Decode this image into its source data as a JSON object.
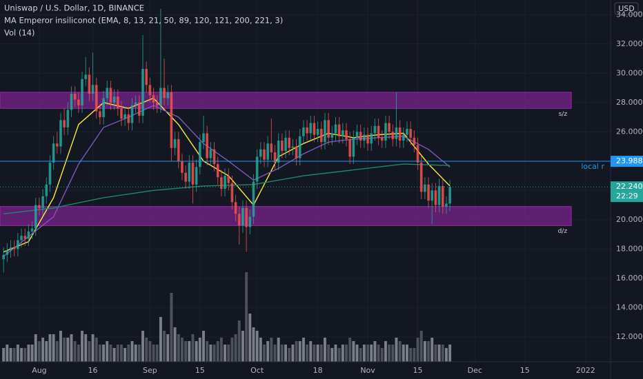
{
  "chart_data": {
    "type": "candlestick",
    "title": "Uniswap / U.S. Dollar, 1D, BINANCE",
    "indicator_label": "MA Emperor insiliconot (EMA, 8, 13, 21, 50, 89, 120, 121, 200, 221, 3)",
    "volume_label": "Vol (14)",
    "currency": "USD",
    "up_color": "#26a69a",
    "down_color": "#ef5350",
    "x": [
      "Jul 22",
      "Jul 23",
      "Jul 24",
      "Jul 25",
      "Jul 26",
      "Jul 27",
      "Jul 28",
      "Jul 29",
      "Jul 30",
      "Jul 31",
      "Aug 1",
      "Aug 2",
      "Aug 3",
      "Aug 4",
      "Aug 5",
      "Aug 6",
      "Aug 7",
      "Aug 8",
      "Aug 9",
      "Aug 10",
      "Aug 11",
      "Aug 12",
      "Aug 13",
      "Aug 14",
      "Aug 15",
      "Aug 16",
      "Aug 17",
      "Aug 18",
      "Aug 19",
      "Aug 20",
      "Aug 21",
      "Aug 22",
      "Aug 23",
      "Aug 24",
      "Aug 25",
      "Aug 26",
      "Aug 27",
      "Aug 28",
      "Aug 29",
      "Aug 30",
      "Aug 31",
      "Sep 1",
      "Sep 2",
      "Sep 3",
      "Sep 4",
      "Sep 5",
      "Sep 6",
      "Sep 7",
      "Sep 8",
      "Sep 9",
      "Sep 10",
      "Sep 11",
      "Sep 12",
      "Sep 13",
      "Sep 14",
      "Sep 15",
      "Sep 16",
      "Sep 17",
      "Sep 18",
      "Sep 19",
      "Sep 20",
      "Sep 21",
      "Sep 22",
      "Sep 23",
      "Sep 24",
      "Sep 25",
      "Sep 26",
      "Sep 27",
      "Sep 28",
      "Sep 29",
      "Sep 30",
      "Oct 1",
      "Oct 2",
      "Oct 3",
      "Oct 4",
      "Oct 5",
      "Oct 6",
      "Oct 7",
      "Oct 8",
      "Oct 9",
      "Oct 10",
      "Oct 11",
      "Oct 12",
      "Oct 13",
      "Oct 14",
      "Oct 15",
      "Oct 16",
      "Oct 17",
      "Oct 18",
      "Oct 19",
      "Oct 20",
      "Oct 21",
      "Oct 22",
      "Oct 23",
      "Oct 24",
      "Oct 25",
      "Oct 26",
      "Oct 27",
      "Oct 28",
      "Oct 29",
      "Oct 30",
      "Oct 31",
      "Nov 1",
      "Nov 2",
      "Nov 3",
      "Nov 4",
      "Nov 5",
      "Nov 6",
      "Nov 7",
      "Nov 8",
      "Nov 9",
      "Nov 10",
      "Nov 11",
      "Nov 12",
      "Nov 13",
      "Nov 14",
      "Nov 15",
      "Nov 16",
      "Nov 17",
      "Nov 18",
      "Nov 19",
      "Nov 20",
      "Nov 21",
      "Nov 22",
      "Nov 23",
      "Nov 24"
    ],
    "open": [
      17.3,
      17.6,
      17.9,
      18.1,
      18.0,
      18.6,
      18.9,
      18.7,
      19.2,
      19.4,
      21.0,
      20.8,
      21.6,
      22.4,
      23.9,
      25.2,
      25.0,
      26.8,
      26.3,
      27.5,
      28.6,
      28.2,
      27.8,
      29.6,
      29.9,
      28.6,
      29.2,
      27.4,
      27.0,
      28.3,
      29.0,
      28.0,
      28.4,
      27.6,
      26.9,
      27.2,
      26.6,
      27.8,
      28.0,
      27.1,
      30.3,
      29.2,
      28.5,
      28.0,
      27.8,
      29.0,
      28.3,
      28.7,
      24.9,
      25.5,
      24.0,
      23.2,
      22.6,
      23.9,
      22.4,
      23.6,
      25.3,
      25.9,
      24.2,
      24.8,
      23.8,
      22.9,
      22.1,
      23.0,
      22.5,
      21.2,
      20.4,
      19.6,
      20.8,
      19.5,
      20.2,
      22.6,
      24.3,
      24.8,
      24.1,
      25.2,
      24.6,
      23.9,
      25.4,
      24.7,
      25.6,
      24.9,
      25.0,
      24.2,
      25.7,
      26.3,
      25.9,
      26.6,
      25.8,
      26.2,
      25.3,
      26.8,
      25.6,
      25.9,
      26.5,
      25.7,
      26.1,
      25.5,
      24.3,
      25.6,
      26.0,
      25.4,
      25.8,
      25.2,
      25.9,
      26.4,
      25.6,
      25.4,
      26.6,
      26.0,
      25.5,
      26.3,
      25.4,
      25.8,
      26.2,
      25.6,
      25.1,
      23.9,
      21.9,
      22.4,
      21.3,
      22.0,
      21.0,
      22.3,
      20.9,
      21.1
    ],
    "high": [
      18.1,
      18.4,
      18.6,
      18.6,
      19.1,
      19.4,
      19.4,
      19.7,
      19.9,
      21.5,
      21.5,
      22.1,
      22.9,
      24.4,
      25.7,
      26.0,
      27.3,
      27.6,
      28.0,
      29.1,
      29.1,
      28.7,
      30.1,
      31.1,
      30.4,
      31.4,
      29.7,
      27.9,
      28.8,
      29.5,
      29.5,
      28.9,
      28.9,
      28.1,
      27.7,
      27.7,
      28.3,
      28.5,
      28.5,
      32.6,
      30.8,
      29.7,
      29.0,
      28.5,
      34.4,
      31.0,
      29.2,
      29.2,
      26.0,
      26.0,
      24.5,
      23.7,
      24.4,
      24.4,
      24.1,
      25.8,
      27.1,
      26.4,
      25.3,
      25.3,
      24.3,
      23.4,
      23.5,
      23.5,
      23.0,
      21.7,
      20.9,
      21.3,
      21.3,
      20.7,
      23.1,
      24.8,
      25.3,
      25.3,
      25.7,
      26.9,
      25.1,
      25.9,
      25.9,
      26.1,
      26.1,
      25.5,
      25.5,
      26.2,
      26.8,
      26.8,
      27.1,
      27.1,
      26.7,
      26.7,
      27.3,
      27.3,
      26.4,
      27.0,
      27.0,
      26.6,
      26.6,
      26.0,
      26.1,
      26.5,
      26.5,
      26.3,
      26.3,
      26.4,
      26.9,
      26.9,
      26.1,
      27.1,
      27.1,
      26.5,
      28.7,
      26.8,
      26.3,
      26.7,
      26.7,
      26.1,
      25.6,
      24.4,
      22.9,
      22.9,
      22.5,
      22.5,
      22.8,
      22.8,
      21.6,
      22.7
    ],
    "low": [
      16.4,
      17.1,
      17.4,
      17.5,
      17.5,
      18.1,
      18.2,
      18.2,
      18.7,
      18.9,
      20.3,
      20.3,
      21.1,
      21.9,
      23.4,
      24.5,
      24.5,
      25.8,
      25.8,
      27.0,
      27.7,
      27.3,
      27.3,
      29.1,
      28.1,
      28.1,
      26.9,
      26.5,
      26.5,
      27.8,
      27.5,
      27.5,
      27.1,
      26.4,
      26.4,
      26.1,
      26.1,
      27.3,
      26.6,
      26.6,
      28.7,
      28.0,
      27.5,
      27.3,
      27.3,
      27.8,
      27.8,
      24.0,
      24.4,
      23.5,
      22.7,
      22.1,
      22.1,
      21.1,
      21.9,
      23.1,
      24.8,
      23.7,
      23.7,
      23.3,
      22.4,
      21.6,
      21.6,
      22.0,
      20.7,
      19.9,
      18.3,
      19.1,
      17.8,
      19.0,
      19.7,
      22.1,
      23.8,
      23.6,
      23.6,
      24.1,
      23.4,
      23.4,
      24.2,
      24.2,
      24.4,
      24.4,
      23.7,
      23.7,
      25.2,
      25.4,
      25.4,
      25.3,
      25.3,
      24.8,
      24.8,
      25.1,
      25.1,
      25.4,
      25.2,
      25.2,
      25.0,
      23.8,
      23.8,
      25.1,
      24.9,
      24.9,
      24.7,
      24.7,
      25.4,
      25.1,
      24.9,
      24.9,
      25.5,
      25.0,
      25.0,
      24.9,
      24.9,
      25.3,
      25.1,
      24.6,
      23.4,
      21.4,
      21.4,
      20.8,
      19.7,
      20.5,
      20.5,
      20.4,
      20.4,
      20.6
    ],
    "close": [
      17.6,
      17.9,
      18.1,
      18.0,
      18.6,
      18.9,
      18.7,
      19.2,
      19.4,
      21.0,
      20.8,
      21.6,
      22.4,
      23.9,
      25.2,
      25.0,
      26.8,
      26.3,
      27.5,
      28.6,
      28.2,
      27.8,
      29.6,
      29.9,
      28.6,
      29.2,
      27.4,
      27.0,
      28.3,
      29.0,
      28.0,
      28.4,
      27.6,
      26.9,
      27.2,
      26.6,
      27.8,
      28.0,
      27.1,
      30.3,
      29.2,
      28.5,
      28.0,
      27.8,
      29.0,
      28.3,
      28.7,
      24.9,
      25.5,
      24.0,
      23.2,
      22.6,
      23.9,
      22.4,
      23.6,
      25.3,
      25.9,
      24.2,
      24.8,
      23.8,
      22.9,
      22.1,
      23.0,
      22.5,
      21.2,
      20.4,
      19.6,
      20.8,
      19.5,
      20.2,
      22.6,
      24.3,
      24.8,
      24.1,
      25.2,
      24.6,
      23.9,
      25.4,
      24.7,
      25.6,
      24.9,
      25.0,
      24.2,
      25.7,
      26.3,
      25.9,
      26.6,
      25.8,
      26.2,
      25.3,
      26.8,
      25.6,
      25.9,
      26.5,
      25.7,
      26.1,
      25.5,
      24.3,
      25.6,
      26.0,
      25.4,
      25.8,
      25.2,
      25.9,
      26.4,
      25.6,
      25.4,
      26.6,
      26.0,
      25.5,
      26.3,
      25.4,
      25.8,
      26.2,
      25.6,
      25.1,
      23.9,
      21.9,
      22.4,
      21.3,
      22.0,
      21.0,
      22.3,
      20.9,
      21.1,
      22.24
    ],
    "volume": {
      "up_color": "#9598a1",
      "down_color": "#5d606b",
      "ylim": [
        0,
        50
      ],
      "values": [
        4,
        5,
        4,
        4,
        5,
        4,
        4,
        5,
        5,
        8,
        6,
        7,
        6,
        8,
        8,
        6,
        9,
        7,
        7,
        8,
        6,
        5,
        9,
        8,
        6,
        8,
        7,
        5,
        5,
        6,
        5,
        4,
        5,
        5,
        4,
        5,
        6,
        5,
        5,
        9,
        7,
        6,
        5,
        5,
        13,
        9,
        8,
        20,
        10,
        8,
        7,
        6,
        6,
        8,
        6,
        7,
        9,
        6,
        5,
        5,
        6,
        7,
        5,
        5,
        7,
        8,
        12,
        9,
        26,
        14,
        10,
        9,
        7,
        5,
        6,
        7,
        5,
        7,
        5,
        5,
        4,
        5,
        6,
        6,
        7,
        5,
        6,
        5,
        5,
        5,
        7,
        5,
        4,
        5,
        4,
        5,
        5,
        7,
        6,
        5,
        4,
        5,
        5,
        5,
        6,
        5,
        4,
        6,
        5,
        5,
        7,
        6,
        5,
        5,
        4,
        4,
        7,
        9,
        6,
        6,
        7,
        5,
        5,
        5,
        4,
        5
      ]
    },
    "lines": [
      {
        "color": "#ffeb3b",
        "x": [
          "Jul 22",
          "Jul 29",
          "Aug 5",
          "Aug 12",
          "Aug 19",
          "Aug 26",
          "Sep 2",
          "Sep 9",
          "Sep 16",
          "Sep 23",
          "Sep 30",
          "Oct 7",
          "Oct 14",
          "Oct 21",
          "Oct 28",
          "Nov 4",
          "Nov 11",
          "Nov 18",
          "Nov 24"
        ],
        "values": [
          17.8,
          18.5,
          21.5,
          26.5,
          28.0,
          27.6,
          28.3,
          26.5,
          24.0,
          23.0,
          21.0,
          24.3,
          25.2,
          25.9,
          25.6,
          25.8,
          25.9,
          23.8,
          22.3
        ]
      },
      {
        "color": "#7e57c2",
        "x": [
          "Jul 22",
          "Aug 5",
          "Aug 12",
          "Aug 19",
          "Aug 26",
          "Sep 2",
          "Sep 9",
          "Sep 16",
          "Sep 23",
          "Sep 30",
          "Oct 7",
          "Oct 14",
          "Oct 21",
          "Oct 28",
          "Nov 4",
          "Nov 11",
          "Nov 18",
          "Nov 24"
        ],
        "values": [
          17.5,
          20.2,
          23.8,
          26.3,
          27.0,
          27.8,
          27.0,
          25.2,
          24.0,
          22.7,
          23.5,
          24.5,
          25.3,
          25.5,
          25.6,
          25.7,
          24.8,
          23.6
        ]
      },
      {
        "color": "#1e8a6a",
        "x": [
          "Jul 22",
          "Aug 5",
          "Aug 19",
          "Sep 2",
          "Sep 16",
          "Sep 30",
          "Oct 14",
          "Oct 28",
          "Nov 11",
          "Nov 24"
        ],
        "values": [
          20.4,
          20.8,
          21.5,
          22.0,
          22.3,
          22.4,
          23.0,
          23.4,
          23.8,
          23.7
        ]
      }
    ],
    "zones": [
      {
        "label": "s/z",
        "range": [
          27.6,
          28.7
        ],
        "end": "Dec 28",
        "color": "#9c27b0"
      },
      {
        "label": "d/z",
        "range": [
          19.6,
          20.9
        ],
        "end": "Dec 28",
        "color": "#9c27b0"
      }
    ],
    "levels": [
      {
        "label": "local r",
        "value": 23.988,
        "color": "#2196f3"
      }
    ],
    "last_price": {
      "value": 22.24,
      "label": "22.240",
      "countdown": "22:29",
      "color": "#26a69a"
    },
    "xlim": [
      "Jul 21",
      "Jan 8"
    ],
    "xticks": [
      {
        "value": "Aug 1",
        "label": "Aug"
      },
      {
        "value": "Aug 16",
        "label": "16"
      },
      {
        "value": "Sep 1",
        "label": "Sep"
      },
      {
        "value": "Sep 15",
        "label": "15"
      },
      {
        "value": "Oct 1",
        "label": "Oct"
      },
      {
        "value": "Oct 18",
        "label": "18"
      },
      {
        "value": "Nov 1",
        "label": "Nov"
      },
      {
        "value": "Nov 15",
        "label": "15"
      },
      {
        "value": "Dec 1",
        "label": "Dec"
      },
      {
        "value": "Dec 15",
        "label": "15"
      },
      {
        "value": "Jan 1",
        "label": "2022"
      }
    ],
    "ylim": [
      10.3,
      35.0
    ],
    "yticks": [
      {
        "value": 12,
        "label": "12.000"
      },
      {
        "value": 14,
        "label": "14.000"
      },
      {
        "value": 16,
        "label": "16.000"
      },
      {
        "value": 18,
        "label": "18.000"
      },
      {
        "value": 20,
        "label": "20.000"
      },
      {
        "value": 22,
        "label": "22.000"
      },
      {
        "value": 24,
        "label": "24.000"
      },
      {
        "value": 26,
        "label": "26.000"
      },
      {
        "value": 28,
        "label": "28.000"
      },
      {
        "value": 30,
        "label": "30.000"
      },
      {
        "value": 32,
        "label": "32.000"
      },
      {
        "value": 34,
        "label": "34.000"
      }
    ],
    "grid": true
  }
}
